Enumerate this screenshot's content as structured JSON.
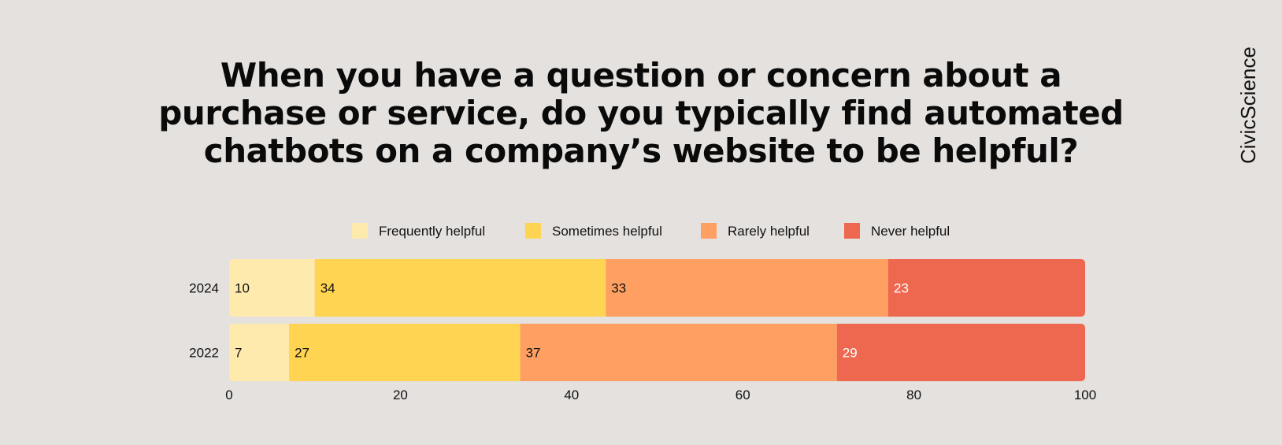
{
  "brand": "CivicScience",
  "chart_data": {
    "type": "bar",
    "orientation": "horizontal",
    "stacked": true,
    "title_lines": [
      "When you have a question or concern about a",
      "purchase or service, do you typically find automated",
      "chatbots on a company’s website to be helpful?"
    ],
    "categories": [
      "2024",
      "2022"
    ],
    "series": [
      {
        "name": "Frequently helpful",
        "color": "#ffeaae",
        "label_color": "#111111",
        "values": [
          10,
          7
        ]
      },
      {
        "name": "Sometimes helpful",
        "color": "#ffd452",
        "label_color": "#111111",
        "values": [
          34,
          27
        ]
      },
      {
        "name": "Rarely helpful",
        "color": "#ffa062",
        "label_color": "#111111",
        "values": [
          33,
          37
        ]
      },
      {
        "name": "Never helpful",
        "color": "#ee684f",
        "label_color": "#ffffff",
        "values": [
          23,
          29
        ]
      }
    ],
    "xlim": [
      0,
      100
    ],
    "xticks": [
      "0",
      "20",
      "40",
      "60",
      "80",
      "100"
    ],
    "legend": "top",
    "grid": false
  }
}
